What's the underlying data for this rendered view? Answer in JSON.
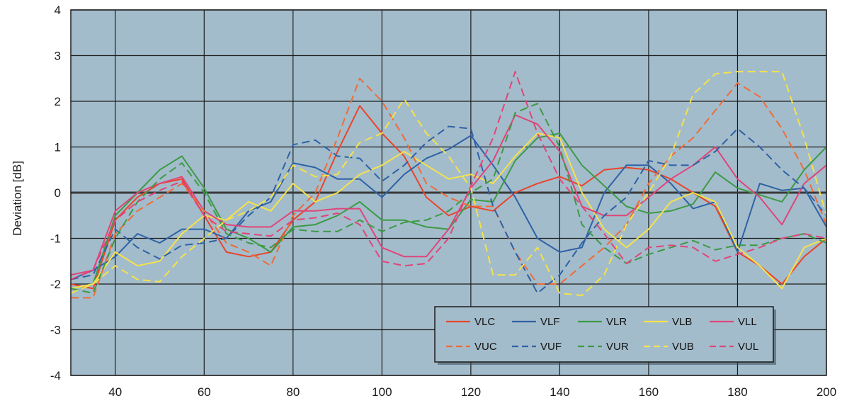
{
  "chart_data": {
    "type": "line",
    "title": "",
    "xlabel": "",
    "ylabel": "Deviation [dB]",
    "xlim": [
      30,
      200
    ],
    "ylim": [
      -4,
      4
    ],
    "x_ticks": [
      40,
      60,
      80,
      100,
      120,
      140,
      160,
      180,
      200
    ],
    "x_tick_labels": [
      "40",
      "60",
      "80",
      "100",
      "120",
      "140",
      "160",
      "180",
      "200"
    ],
    "y_ticks": [
      -4,
      -3,
      -2,
      -1,
      0,
      1,
      2,
      3,
      4
    ],
    "y_tick_labels": [
      "-4",
      "-3",
      "-2",
      "-1",
      "0",
      "1",
      "2",
      "3",
      "4"
    ],
    "grid": true,
    "plot_background": "#a3bccb",
    "legend_position": "bottom-right",
    "legend_background": "#a3bccb",
    "series": [
      {
        "name": "VLC",
        "color": "#e8452c",
        "dash": "solid",
        "x": [
          30,
          35,
          40,
          45,
          50,
          55,
          60,
          65,
          70,
          75,
          80,
          85,
          90,
          95,
          100,
          105,
          110,
          115,
          120,
          125,
          130,
          135,
          140,
          145,
          150,
          155,
          160,
          165,
          170,
          175,
          180,
          185,
          190,
          195,
          200
        ],
        "y": [
          -2.0,
          -2.1,
          -0.6,
          -0.1,
          0.2,
          0.3,
          -0.5,
          -1.3,
          -1.4,
          -1.3,
          -0.6,
          -0.2,
          0.9,
          1.9,
          1.3,
          0.8,
          -0.1,
          -0.5,
          -0.3,
          -0.4,
          0.0,
          0.2,
          0.35,
          0.15,
          0.5,
          0.55,
          0.5,
          0.3,
          0.0,
          -0.3,
          -1.3,
          -1.6,
          -2.0,
          -1.4,
          -1.0
        ]
      },
      {
        "name": "VLF",
        "color": "#2f62a6",
        "dash": "solid",
        "x": [
          30,
          35,
          40,
          45,
          50,
          55,
          60,
          65,
          70,
          75,
          80,
          85,
          90,
          95,
          100,
          105,
          110,
          115,
          120,
          125,
          130,
          135,
          140,
          145,
          150,
          155,
          160,
          165,
          170,
          175,
          180,
          185,
          190,
          195,
          200
        ],
        "y": [
          -1.9,
          -1.7,
          -1.4,
          -0.9,
          -1.1,
          -0.8,
          -0.8,
          -1.0,
          -0.4,
          -0.2,
          0.65,
          0.55,
          0.3,
          0.3,
          -0.1,
          0.4,
          0.75,
          0.95,
          1.25,
          0.6,
          -0.1,
          -1.0,
          -1.3,
          -1.2,
          0.0,
          0.6,
          0.6,
          0.2,
          -0.35,
          -0.2,
          -1.3,
          0.2,
          0.05,
          0.1,
          -0.75
        ]
      },
      {
        "name": "VLR",
        "color": "#3d9a45",
        "dash": "solid",
        "x": [
          30,
          35,
          40,
          45,
          50,
          55,
          60,
          65,
          70,
          75,
          80,
          85,
          90,
          95,
          100,
          105,
          110,
          115,
          120,
          125,
          130,
          135,
          140,
          145,
          150,
          155,
          160,
          165,
          170,
          175,
          180,
          185,
          190,
          195,
          200
        ],
        "y": [
          -2.1,
          -2.0,
          -0.5,
          0.0,
          0.5,
          0.8,
          0.1,
          -0.8,
          -1.0,
          -1.3,
          -0.75,
          -0.7,
          -0.5,
          -0.2,
          -0.6,
          -0.6,
          -0.75,
          -0.8,
          -0.15,
          -0.2,
          0.7,
          1.2,
          1.3,
          0.6,
          0.15,
          -0.3,
          -0.45,
          -0.4,
          -0.25,
          0.45,
          0.1,
          -0.05,
          -0.2,
          0.5,
          1.0
        ]
      },
      {
        "name": "VLB",
        "color": "#f5e24a",
        "dash": "solid",
        "x": [
          30,
          35,
          40,
          45,
          50,
          55,
          60,
          65,
          70,
          75,
          80,
          85,
          90,
          95,
          100,
          105,
          110,
          115,
          120,
          125,
          130,
          135,
          140,
          145,
          150,
          155,
          160,
          165,
          170,
          175,
          180,
          185,
          190,
          195,
          200
        ],
        "y": [
          -2.1,
          -2.0,
          -1.3,
          -1.6,
          -1.5,
          -0.9,
          -0.5,
          -0.6,
          -0.2,
          -0.4,
          0.2,
          -0.2,
          0.0,
          0.4,
          0.6,
          0.9,
          0.6,
          0.3,
          0.4,
          0.2,
          0.8,
          1.3,
          1.2,
          0.0,
          -0.8,
          -1.2,
          -0.8,
          -0.2,
          0.0,
          -0.2,
          -1.2,
          -1.6,
          -2.1,
          -1.2,
          -1.0
        ]
      },
      {
        "name": "VLL",
        "color": "#e0457a",
        "dash": "solid",
        "x": [
          30,
          35,
          40,
          45,
          50,
          55,
          60,
          65,
          70,
          75,
          80,
          85,
          90,
          95,
          100,
          105,
          110,
          115,
          120,
          125,
          130,
          135,
          140,
          145,
          150,
          155,
          160,
          165,
          170,
          175,
          180,
          185,
          190,
          195,
          200
        ],
        "y": [
          -1.8,
          -1.7,
          -0.4,
          0.0,
          0.2,
          0.35,
          -0.4,
          -0.7,
          -0.75,
          -0.75,
          -0.4,
          -0.4,
          -0.35,
          -0.35,
          -1.2,
          -1.4,
          -1.4,
          -0.8,
          0.1,
          0.7,
          1.7,
          1.5,
          0.9,
          -0.3,
          -0.5,
          -0.5,
          -0.1,
          0.3,
          0.6,
          1.0,
          0.3,
          -0.1,
          -0.7,
          0.2,
          0.6
        ]
      },
      {
        "name": "VUC",
        "color": "#ef6b38",
        "dash": "dashed",
        "x": [
          30,
          35,
          40,
          45,
          50,
          55,
          60,
          65,
          70,
          75,
          80,
          85,
          90,
          95,
          100,
          105,
          110,
          115,
          120,
          125,
          130,
          135,
          140,
          145,
          150,
          155,
          160,
          165,
          170,
          175,
          180,
          185,
          190,
          195,
          200
        ],
        "y": [
          -2.3,
          -2.3,
          -0.9,
          -0.4,
          -0.1,
          0.2,
          -0.4,
          -1.1,
          -1.3,
          -1.6,
          -0.5,
          0.0,
          1.2,
          2.5,
          2.0,
          1.2,
          0.2,
          -0.1,
          -0.3,
          -0.3,
          -1.3,
          -2.0,
          -2.0,
          -1.6,
          -1.2,
          -0.7,
          0.2,
          0.8,
          1.2,
          1.8,
          2.4,
          2.1,
          1.4,
          0.5,
          -0.7
        ]
      },
      {
        "name": "VUF",
        "color": "#2f62a6",
        "dash": "dashed",
        "x": [
          30,
          35,
          40,
          45,
          50,
          55,
          60,
          65,
          70,
          75,
          80,
          85,
          90,
          95,
          100,
          105,
          110,
          115,
          120,
          125,
          130,
          135,
          140,
          145,
          150,
          155,
          160,
          165,
          170,
          175,
          180,
          185,
          190,
          195,
          200
        ],
        "y": [
          -1.9,
          -1.8,
          -0.8,
          -1.2,
          -1.45,
          -1.15,
          -1.1,
          -1.0,
          -0.5,
          -0.1,
          1.05,
          1.15,
          0.8,
          0.75,
          0.25,
          0.6,
          1.1,
          1.45,
          1.4,
          -0.3,
          -1.3,
          -2.2,
          -1.8,
          -1.1,
          -0.5,
          -0.1,
          0.7,
          0.6,
          0.6,
          0.9,
          1.4,
          1.0,
          0.5,
          0.1,
          -0.5
        ]
      },
      {
        "name": "VUR",
        "color": "#3d9a45",
        "dash": "dashed",
        "x": [
          30,
          35,
          40,
          45,
          50,
          55,
          60,
          65,
          70,
          75,
          80,
          85,
          90,
          95,
          100,
          105,
          110,
          115,
          120,
          125,
          130,
          135,
          140,
          145,
          150,
          155,
          160,
          165,
          170,
          175,
          180,
          185,
          190,
          195,
          200
        ],
        "y": [
          -2.1,
          -2.2,
          -1.0,
          -0.2,
          0.3,
          0.65,
          0.0,
          -0.9,
          -1.1,
          -1.2,
          -0.8,
          -0.85,
          -0.85,
          -0.6,
          -0.85,
          -0.65,
          -0.6,
          -0.4,
          0.0,
          0.3,
          1.75,
          1.95,
          1.0,
          -0.7,
          -1.2,
          -1.55,
          -1.35,
          -1.2,
          -1.05,
          -1.25,
          -1.15,
          -1.15,
          -1.0,
          -0.9,
          -1.1
        ]
      },
      {
        "name": "VUB",
        "color": "#f5e24a",
        "dash": "dashed",
        "x": [
          30,
          35,
          40,
          45,
          50,
          55,
          60,
          65,
          70,
          75,
          80,
          85,
          90,
          95,
          100,
          105,
          110,
          115,
          120,
          125,
          130,
          135,
          140,
          145,
          150,
          155,
          160,
          165,
          170,
          175,
          180,
          185,
          190,
          195,
          200
        ],
        "y": [
          -2.2,
          -2.0,
          -1.6,
          -1.9,
          -1.95,
          -1.4,
          -1.0,
          -0.6,
          -0.4,
          -0.1,
          0.6,
          0.35,
          0.4,
          1.1,
          1.3,
          2.05,
          1.3,
          0.8,
          0.1,
          -1.8,
          -1.8,
          -1.2,
          -2.2,
          -2.25,
          -1.8,
          -0.7,
          0.0,
          0.8,
          2.15,
          2.6,
          2.65,
          2.65,
          2.65,
          1.2,
          -0.5
        ]
      },
      {
        "name": "VUL",
        "color": "#e0457a",
        "dash": "dashed",
        "x": [
          30,
          35,
          40,
          45,
          50,
          55,
          60,
          65,
          70,
          75,
          80,
          85,
          90,
          95,
          100,
          105,
          110,
          115,
          120,
          125,
          130,
          135,
          140,
          145,
          150,
          155,
          160,
          165,
          170,
          175,
          180,
          185,
          190,
          195,
          200
        ],
        "y": [
          -1.9,
          -1.7,
          -0.6,
          -0.2,
          0.05,
          0.25,
          -0.5,
          -0.85,
          -0.9,
          -0.95,
          -0.6,
          -0.55,
          -0.45,
          -0.7,
          -1.5,
          -1.6,
          -1.55,
          -1.0,
          0.15,
          1.2,
          2.65,
          1.3,
          0.3,
          -0.3,
          -0.9,
          -1.55,
          -1.2,
          -1.15,
          -1.2,
          -1.5,
          -1.35,
          -1.2,
          -1.0,
          -0.9,
          -1.0
        ]
      }
    ]
  }
}
